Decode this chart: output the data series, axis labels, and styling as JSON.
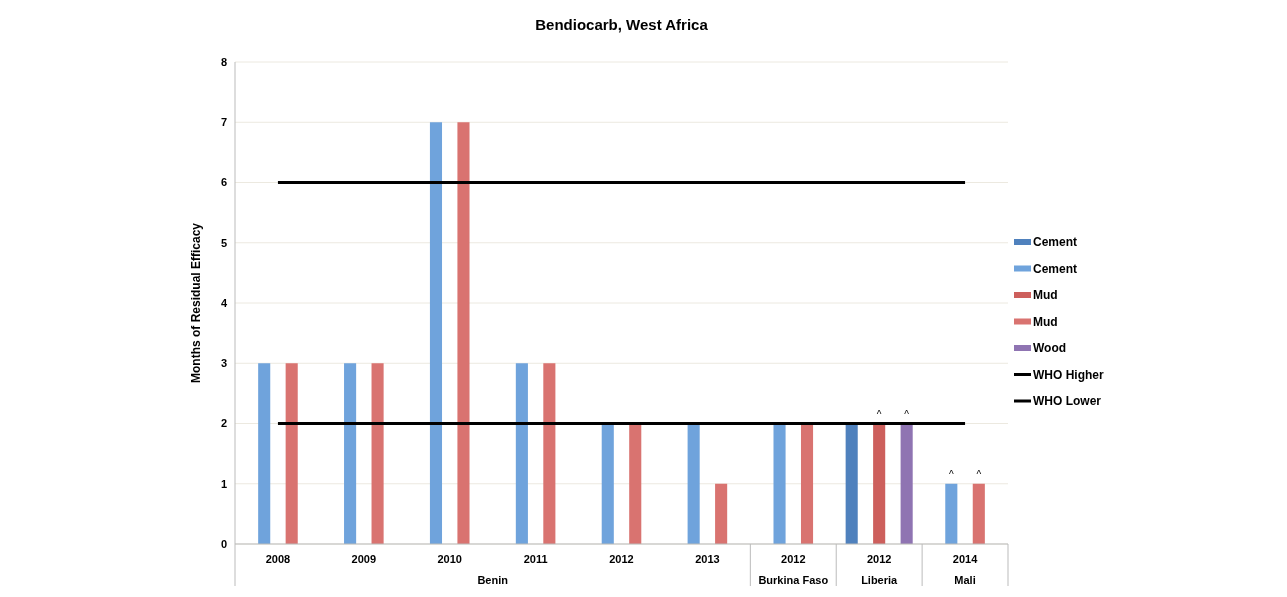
{
  "chart_data": {
    "type": "bar",
    "title": "Bendiocarb,  West Africa",
    "ylabel": "Months of Residual Efficacy",
    "categories": [
      "2008",
      "2009",
      "2010",
      "2011",
      "2012",
      "2013",
      "2012",
      "2012",
      "2014"
    ],
    "series": [
      {
        "name": "Cement",
        "color": "#4f81bd",
        "values": [
          null,
          null,
          null,
          null,
          null,
          null,
          null,
          2,
          null
        ]
      },
      {
        "name": "Cement",
        "color": "#6fa3dc",
        "values": [
          3,
          3,
          7,
          3,
          2,
          2,
          2,
          null,
          1
        ]
      },
      {
        "name": "Mud",
        "color": "#cd5f5c",
        "values": [
          null,
          null,
          null,
          null,
          null,
          null,
          null,
          2,
          null
        ]
      },
      {
        "name": "Mud",
        "color": "#d97370",
        "values": [
          3,
          3,
          7,
          3,
          2,
          1,
          2,
          null,
          1
        ]
      },
      {
        "name": "Wood",
        "color": "#8f74b2",
        "values": [
          null,
          null,
          null,
          null,
          null,
          null,
          null,
          2,
          null
        ]
      },
      {
        "name": "WHO Higher",
        "type": "line",
        "color": "#000000",
        "values": [
          6,
          6,
          6,
          6,
          6,
          6,
          6,
          6,
          6
        ]
      },
      {
        "name": "WHO Lower",
        "type": "line",
        "color": "#000000",
        "values": [
          2,
          2,
          2,
          2,
          2,
          2,
          2,
          2,
          2
        ]
      }
    ],
    "ylim": [
      0,
      8
    ],
    "yticks": [
      0,
      1,
      2,
      3,
      4,
      5,
      6,
      7,
      8
    ],
    "grid": "y",
    "legend": "right",
    "marker": "none",
    "annotations": [
      "Benin",
      "Burkina Faso",
      "Liberia",
      "Mali",
      "^",
      "^",
      "^",
      "^"
    ]
  }
}
